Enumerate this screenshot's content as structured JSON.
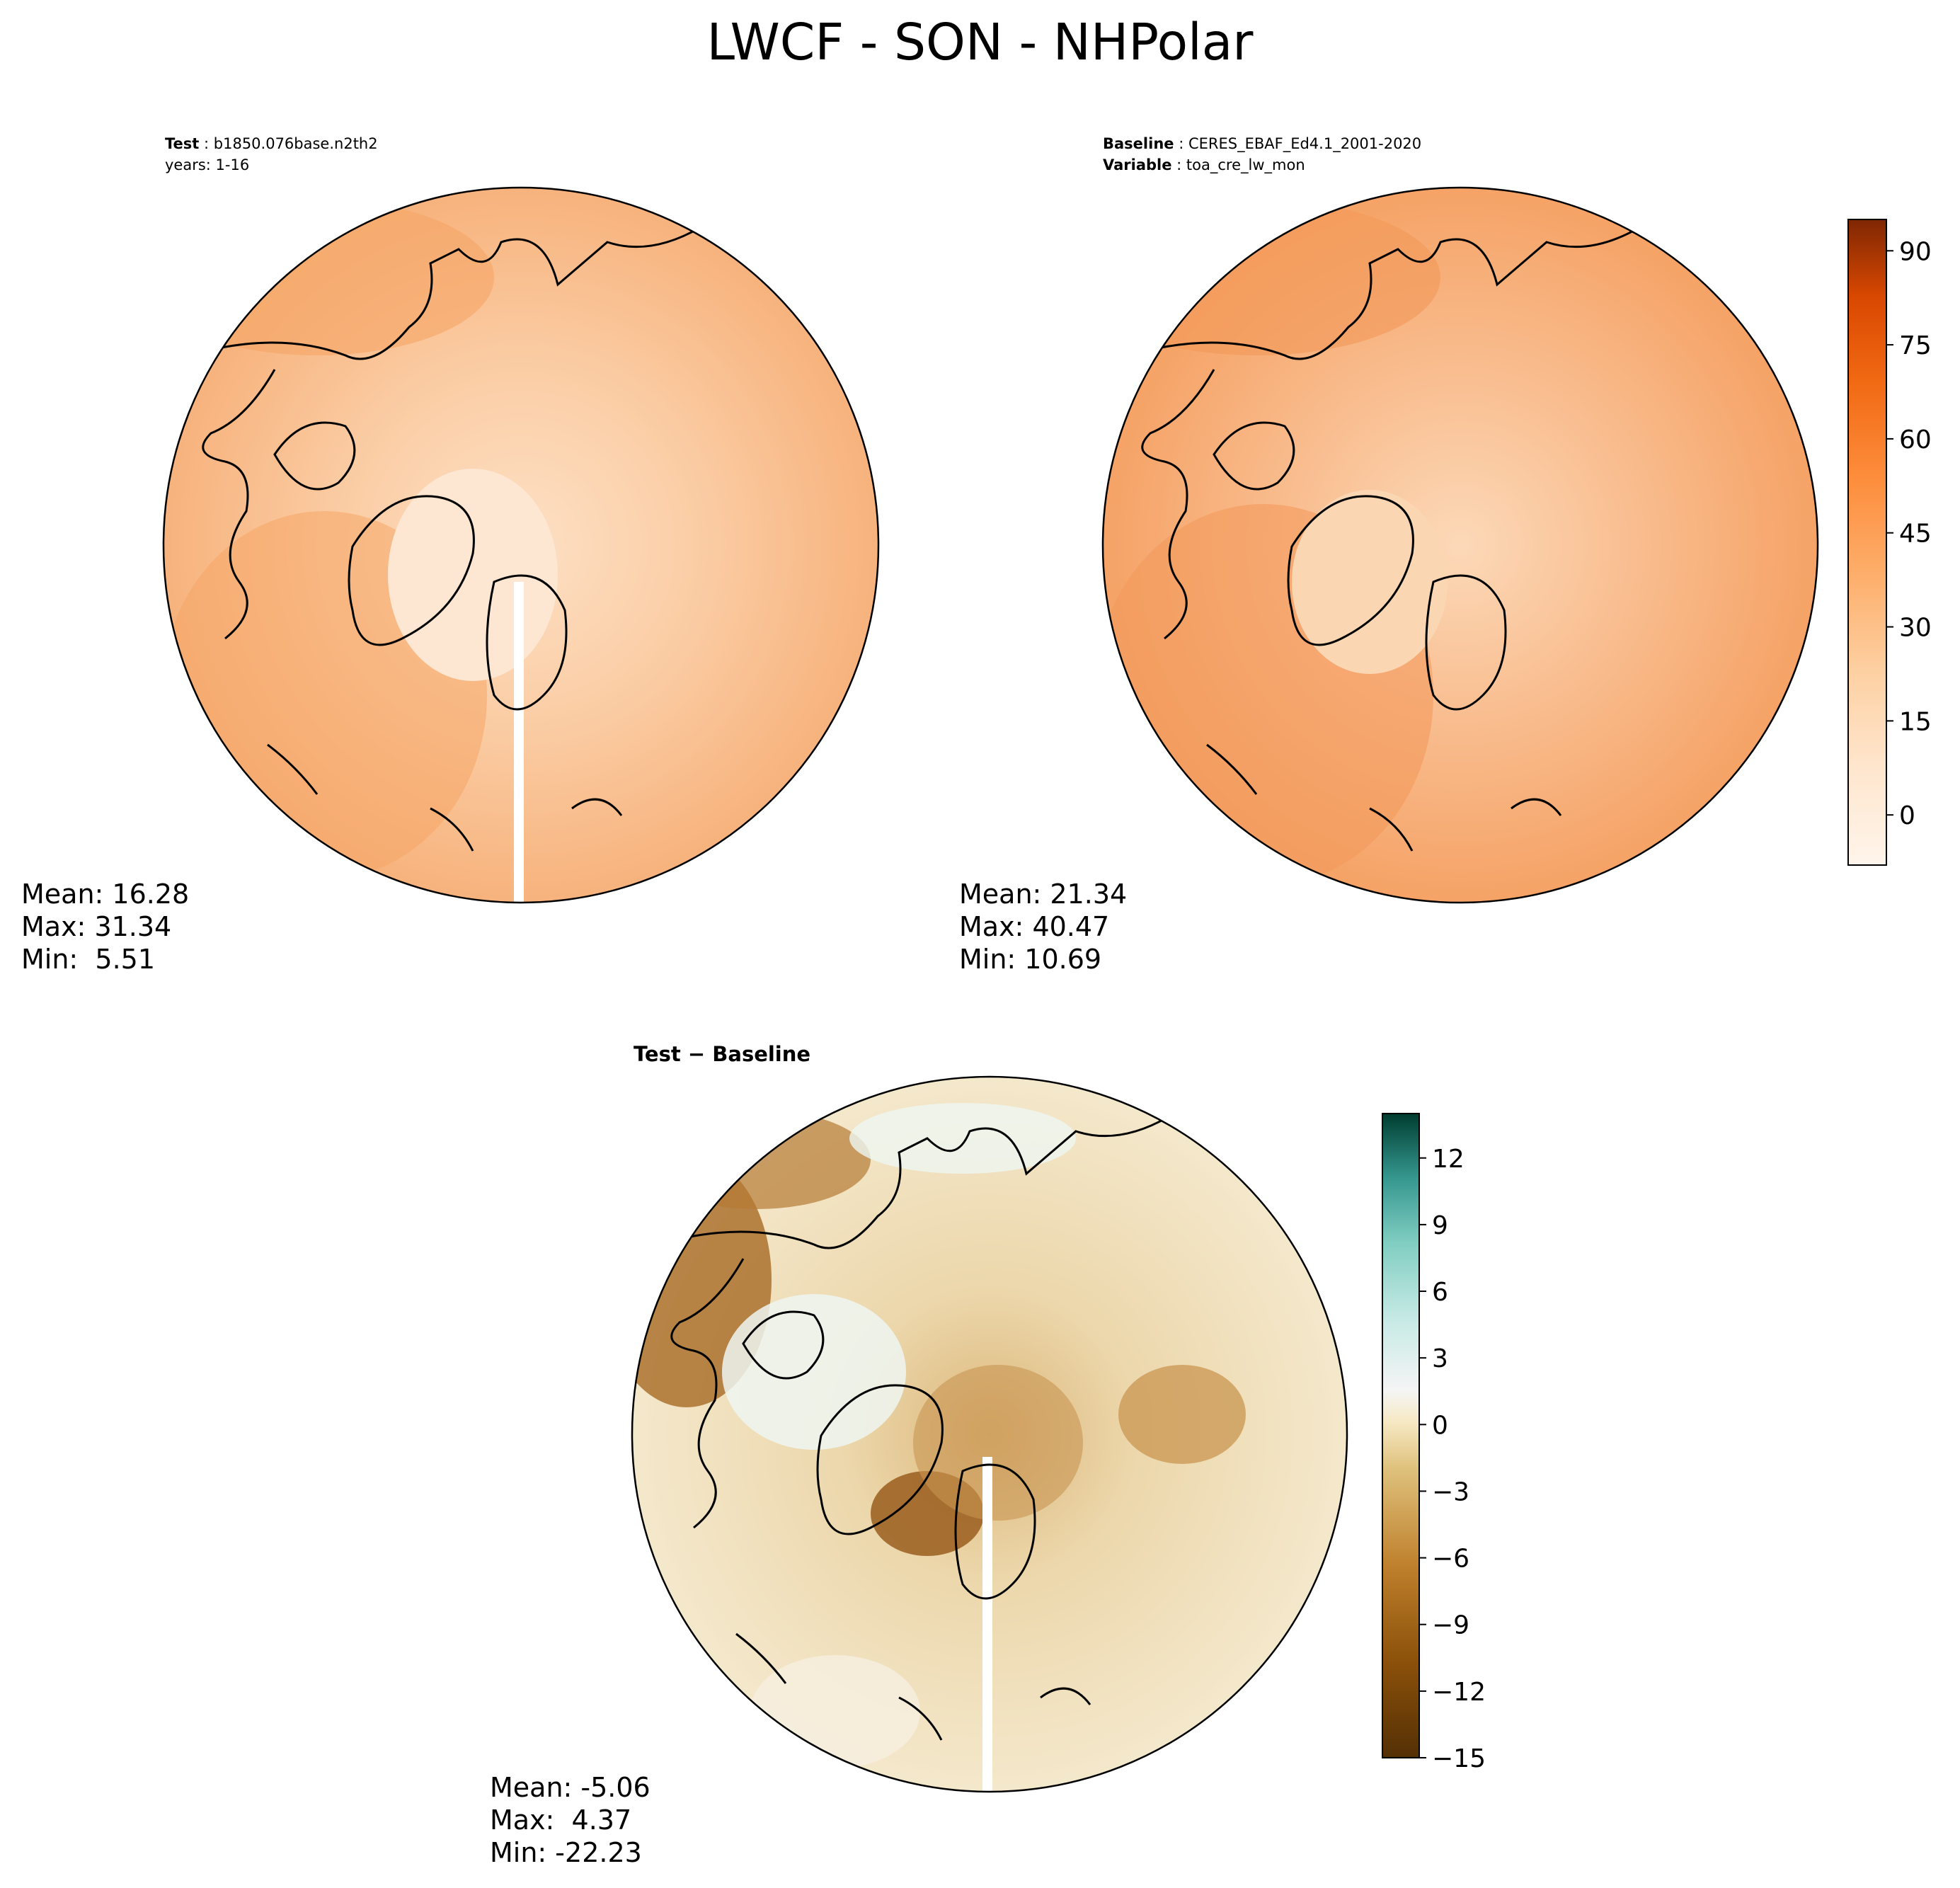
{
  "title": "LWCF - SON - NHPolar",
  "panels": [
    {
      "id": "test",
      "label1_key": "Test",
      "label1_value": "b1850.076base.n2th2",
      "label2": "years: 1-16",
      "mean": "Mean: 16.28",
      "max": "Max: 31.34",
      "min": "Min:  5.51"
    },
    {
      "id": "baseline",
      "label1_key": "Baseline",
      "label1_value": "CERES_EBAF_Ed4.1_2001-2020",
      "label2_key": "Variable",
      "label2_value": "toa_cre_lw_mon",
      "mean": "Mean: 21.34",
      "max": "Max: 40.47",
      "min": "Min: 10.69"
    },
    {
      "id": "difference",
      "title_a": "Test",
      "title_sep": "−",
      "title_b": "Baseline",
      "mean": "Mean: -5.06",
      "max": "Max:  4.37",
      "min": "Min: -22.23"
    }
  ],
  "colorbars": {
    "main": {
      "colormap": "Oranges",
      "ticks": [
        "90",
        "75",
        "60",
        "45",
        "30",
        "15",
        "0"
      ],
      "range": [
        -8,
        95
      ]
    },
    "diff": {
      "colormap": "BrBG",
      "ticks": [
        "12",
        "9",
        "6",
        "3",
        "0",
        "−3",
        "−6",
        "−9",
        "−12",
        "−15"
      ],
      "range": [
        -15,
        14
      ]
    }
  },
  "colors": {
    "test_field": "#f9c49a",
    "baseline_field": "#f6a86e",
    "diff_field": "#e9d3a4",
    "coastline": "#000000"
  }
}
